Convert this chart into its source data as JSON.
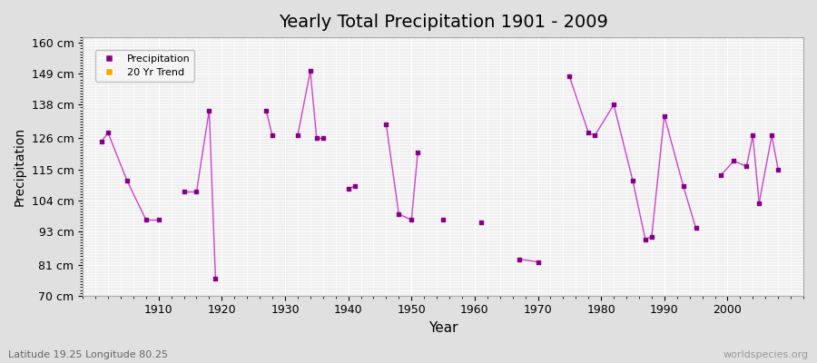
{
  "title": "Yearly Total Precipitation 1901 - 2009",
  "xlabel": "Year",
  "ylabel": "Precipitation",
  "subtitle": "Latitude 19.25 Longitude 80.25",
  "watermark": "worldspecies.org",
  "ylim": [
    70,
    162
  ],
  "yticks": [
    70,
    81,
    93,
    104,
    115,
    126,
    138,
    149,
    160
  ],
  "ytick_labels": [
    "70 cm",
    "81 cm",
    "93 cm",
    "104 cm",
    "115 cm",
    "126 cm",
    "138 cm",
    "149 cm",
    "160 cm"
  ],
  "xlim": [
    1898,
    2012
  ],
  "bg_color": "#e0e0e0",
  "plot_bg_color": "#efefef",
  "grid_color": "#ffffff",
  "line_color": "#cc44cc",
  "marker_color": "#880088",
  "legend_precip_color": "#880088",
  "legend_trend_color": "#ffa500",
  "years": [
    1901,
    1902,
    1905,
    1908,
    1910,
    1914,
    1916,
    1918,
    1919,
    1927,
    1928,
    1932,
    1934,
    1935,
    1936,
    1940,
    1941,
    1946,
    1948,
    1950,
    1951,
    1955,
    1961,
    1967,
    1970,
    1975,
    1978,
    1979,
    1982,
    1985,
    1987,
    1988,
    1990,
    1993,
    1995,
    1999,
    2001,
    2003,
    2004,
    2005,
    2007,
    2008
  ],
  "precip": [
    125,
    128,
    111,
    97,
    97,
    107,
    107,
    136,
    76,
    136,
    127,
    127,
    150,
    126,
    126,
    108,
    109,
    131,
    99,
    97,
    121,
    97,
    96,
    83,
    82,
    148,
    128,
    127,
    138,
    111,
    90,
    91,
    134,
    109,
    94,
    113,
    118,
    116,
    127,
    103,
    127,
    115
  ]
}
